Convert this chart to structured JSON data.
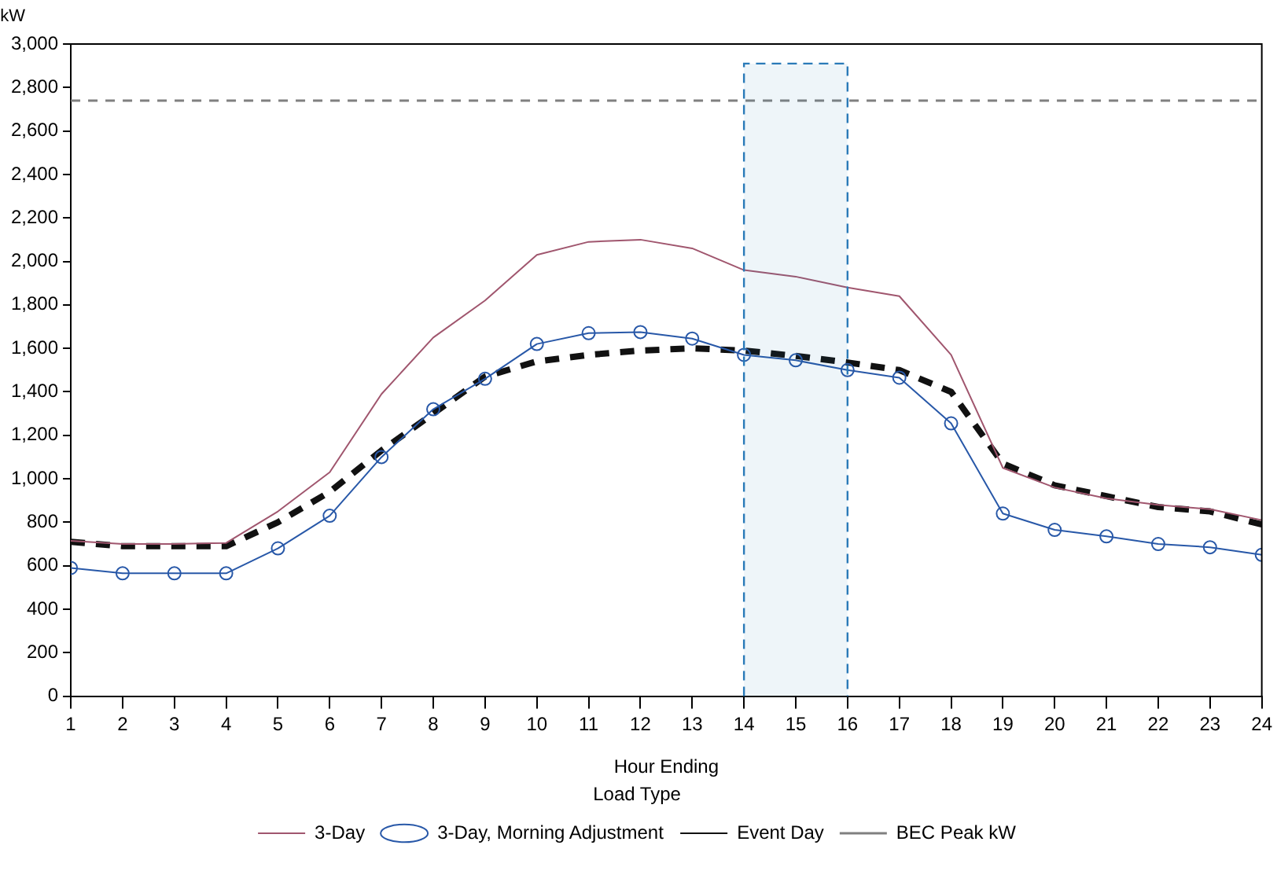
{
  "chart_data": {
    "type": "line",
    "xlabel": "Hour Ending",
    "ylabel": "kW",
    "legend_title": "Load Type",
    "x": [
      1,
      2,
      3,
      4,
      5,
      6,
      7,
      8,
      9,
      10,
      11,
      12,
      13,
      14,
      15,
      16,
      17,
      18,
      19,
      20,
      21,
      22,
      23,
      24
    ],
    "xlim": [
      1,
      24
    ],
    "xticks": [
      1,
      2,
      3,
      4,
      5,
      6,
      7,
      8,
      9,
      10,
      11,
      12,
      13,
      14,
      15,
      16,
      17,
      18,
      19,
      20,
      21,
      22,
      23,
      24
    ],
    "ylim": [
      0,
      3000
    ],
    "yticks": [
      {
        "value": 0,
        "label": "0"
      },
      {
        "value": 200,
        "label": "200"
      },
      {
        "value": 400,
        "label": "400"
      },
      {
        "value": 600,
        "label": "600"
      },
      {
        "value": 800,
        "label": "800"
      },
      {
        "value": 1000,
        "label": "1,000"
      },
      {
        "value": 1200,
        "label": "1,200"
      },
      {
        "value": 1400,
        "label": "1,400"
      },
      {
        "value": 1600,
        "label": "1,600"
      },
      {
        "value": 1800,
        "label": "1,800"
      },
      {
        "value": 2000,
        "label": "2,000"
      },
      {
        "value": 2200,
        "label": "2,200"
      },
      {
        "value": 2400,
        "label": "2,400"
      },
      {
        "value": 2600,
        "label": "2,600"
      },
      {
        "value": 2800,
        "label": "2,800"
      },
      {
        "value": 3000,
        "label": "3,000"
      }
    ],
    "grid": false,
    "legend": "bottom",
    "series": [
      {
        "name": "3-Day",
        "color": "#a0566e",
        "marker": "none",
        "line_style": "solid",
        "values": [
          715,
          700,
          700,
          705,
          850,
          1030,
          1390,
          1650,
          1820,
          2030,
          2090,
          2100,
          2060,
          1960,
          1930,
          1880,
          1840,
          1570,
          1050,
          960,
          910,
          880,
          860,
          810
        ]
      },
      {
        "name": "3-Day, Morning Adjustment",
        "color": "#2858a8",
        "marker": "circle",
        "line_style": "solid",
        "values": [
          590,
          565,
          565,
          565,
          680,
          830,
          1100,
          1320,
          1460,
          1620,
          1670,
          1675,
          1645,
          1570,
          1545,
          1500,
          1465,
          1255,
          840,
          765,
          735,
          700,
          685,
          650
        ]
      },
      {
        "name": "Event Day",
        "color": "#111111",
        "marker": "none",
        "line_style": "dashed",
        "values": [
          710,
          690,
          690,
          690,
          800,
          940,
          1130,
          1300,
          1470,
          1540,
          1570,
          1590,
          1600,
          1590,
          1565,
          1535,
          1500,
          1400,
          1070,
          970,
          920,
          870,
          850,
          790
        ]
      }
    ],
    "ref_lines": [
      {
        "axis": "y",
        "value": 2740,
        "label": "BEC Peak kW",
        "color": "#808080",
        "line_style": "dashed"
      }
    ],
    "bands": [
      {
        "axis": "x",
        "from": 14,
        "to": 16,
        "color": "#2a7ab8"
      }
    ]
  }
}
